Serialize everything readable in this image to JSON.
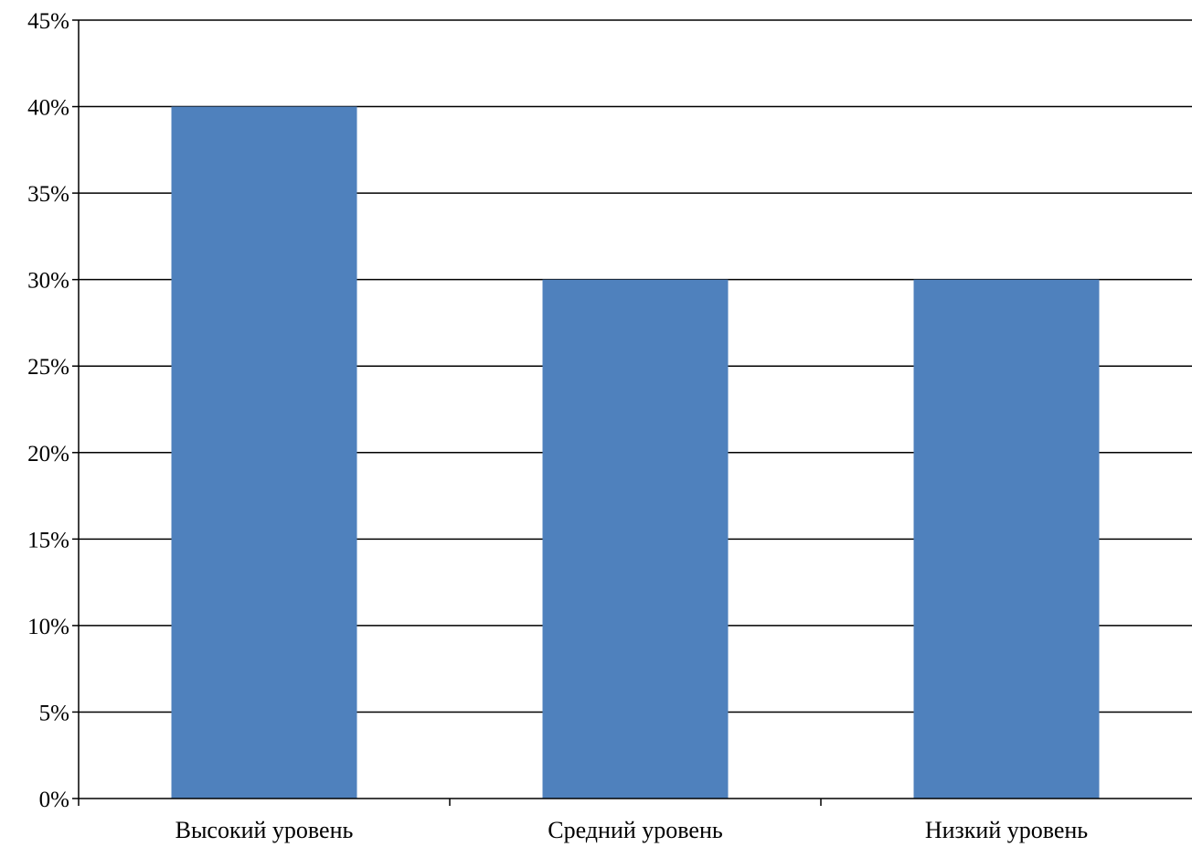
{
  "chart_data": {
    "type": "bar",
    "categories": [
      "Высокий уровень",
      "Средний уровень",
      "Низкий уровень"
    ],
    "values": [
      40,
      30,
      30
    ],
    "ylim": [
      0,
      45
    ],
    "yticks": [
      0,
      5,
      10,
      15,
      20,
      25,
      30,
      35,
      40,
      45
    ],
    "ytick_suffix": "%",
    "grid": true,
    "legend": "none",
    "bar_color": "#4f81bd",
    "grid_color": "#000000"
  }
}
